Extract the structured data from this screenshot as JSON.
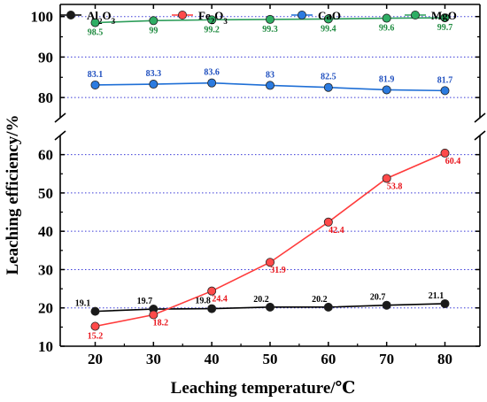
{
  "chart_data": {
    "type": "line",
    "xlabel": "Leaching temperature/℃",
    "ylabel": "Leaching efficiency/%",
    "x": [
      20,
      30,
      40,
      50,
      60,
      70,
      80
    ],
    "x_ticks": [
      "20",
      "30",
      "40",
      "50",
      "60",
      "70",
      "80"
    ],
    "xlim": [
      14,
      86
    ],
    "y_axis_break": true,
    "y_segments": [
      {
        "range": [
          10,
          65
        ],
        "ticks": [
          "10",
          "20",
          "30",
          "40",
          "50",
          "60"
        ]
      },
      {
        "range": [
          75,
          103
        ],
        "ticks": [
          "80",
          "90",
          "100"
        ]
      }
    ],
    "grid": "dotted horizontal at major ticks",
    "legend": {
      "position": "top",
      "entries": [
        {
          "base": "Al",
          "sub1": "2",
          "mid": "O",
          "sub2": "3"
        },
        {
          "base": "Fe",
          "sub1": "2",
          "mid": "O",
          "sub2": "3"
        },
        {
          "base": "CaO",
          "sub1": "",
          "mid": "",
          "sub2": ""
        },
        {
          "base": "MgO",
          "sub1": "",
          "mid": "",
          "sub2": ""
        }
      ]
    },
    "series": [
      {
        "name": "Al2O3",
        "color": "#000000",
        "fill": "#1a1a1a",
        "values": [
          19.1,
          19.7,
          19.8,
          20.2,
          20.2,
          20.7,
          21.1
        ],
        "labels": [
          "19.1",
          "19.7",
          "19.8",
          "20.2",
          "20.2",
          "20.7",
          "21.1"
        ],
        "label_color": "#000000"
      },
      {
        "name": "Fe2O3",
        "color": "#ff3b3b",
        "fill": "#ff4a4a",
        "values": [
          15.2,
          18.2,
          24.4,
          31.9,
          42.4,
          53.8,
          60.4
        ],
        "labels": [
          "15.2",
          "18.2",
          "24.4",
          "31.9",
          "42.4",
          "53.8",
          "60.4"
        ],
        "label_color": "#e8141b"
      },
      {
        "name": "CaO",
        "color": "#1f6fd6",
        "fill": "#2b7be0",
        "values": [
          83.1,
          83.3,
          83.6,
          83,
          82.5,
          81.9,
          81.7
        ],
        "labels": [
          "83.1",
          "83.3",
          "83.6",
          "83",
          "82.5",
          "81.9",
          "81.7"
        ],
        "label_color": "#1f4fbf"
      },
      {
        "name": "MgO",
        "color": "#2e9e5b",
        "fill": "#2fae64",
        "values": [
          98.5,
          99,
          99.2,
          99.3,
          99.4,
          99.6,
          99.7
        ],
        "labels": [
          "98.5",
          "99",
          "99.2",
          "99.3",
          "99.4",
          "99.6",
          "99.7"
        ],
        "label_color": "#1e8a3f"
      }
    ]
  }
}
